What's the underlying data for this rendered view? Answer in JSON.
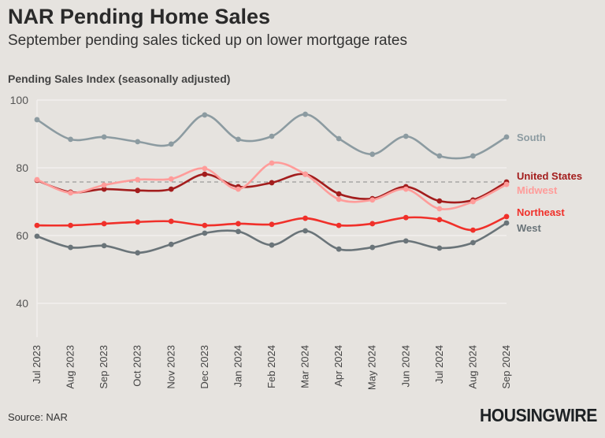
{
  "title": "NAR Pending Home Sales",
  "subtitle": "September pending sales ticked up on lower mortgage rates",
  "source": "Source: NAR",
  "logo": "HOUSINGWIRE",
  "chart_data": {
    "type": "line",
    "title": "NAR Pending Home Sales",
    "ylabel": "Pending Sales Index (seasonally adjusted)",
    "xlabel": "",
    "ylim": [
      30,
      100
    ],
    "yticks": [
      40,
      60,
      80,
      100
    ],
    "grid": true,
    "legend": "direct labels at right end of lines",
    "reference_line": {
      "value": 75.8,
      "style": "dashed"
    },
    "categories": [
      "Jul 2023",
      "Aug 2023",
      "Sep 2023",
      "Oct 2023",
      "Nov 2023",
      "Dec 2023",
      "Jan 2024",
      "Feb 2024",
      "Mar 2024",
      "Apr 2024",
      "May 2024",
      "Jun 2024",
      "Jul 2024",
      "Aug 2024",
      "Sep 2024"
    ],
    "series": [
      {
        "name": "South",
        "color": "#8c9ba1",
        "values": [
          94.2,
          88.4,
          89.1,
          87.7,
          87.0,
          95.6,
          88.4,
          89.3,
          95.8,
          88.6,
          84.0,
          89.3,
          83.5,
          83.5,
          89.1
        ]
      },
      {
        "name": "United States",
        "color": "#a31d1d",
        "values": [
          76.3,
          72.8,
          73.7,
          73.3,
          73.7,
          78.1,
          74.4,
          75.6,
          78.1,
          72.3,
          70.9,
          74.4,
          70.2,
          70.5,
          75.8
        ]
      },
      {
        "name": "Midwest",
        "color": "#ff9c9a",
        "values": [
          76.5,
          72.6,
          74.9,
          76.5,
          76.7,
          79.8,
          73.7,
          81.4,
          78.1,
          70.7,
          70.5,
          73.7,
          67.9,
          70.0,
          75.1
        ]
      },
      {
        "name": "Northeast",
        "color": "#f0302a",
        "values": [
          63.0,
          63.0,
          63.5,
          64.0,
          64.2,
          63.0,
          63.5,
          63.3,
          65.1,
          63.0,
          63.5,
          65.3,
          64.7,
          61.6,
          65.6
        ]
      },
      {
        "name": "West",
        "color": "#6a7479",
        "values": [
          59.8,
          56.5,
          57.0,
          54.9,
          57.4,
          60.7,
          61.2,
          57.2,
          61.4,
          56.0,
          56.5,
          58.4,
          56.3,
          57.9,
          63.7
        ]
      }
    ]
  }
}
